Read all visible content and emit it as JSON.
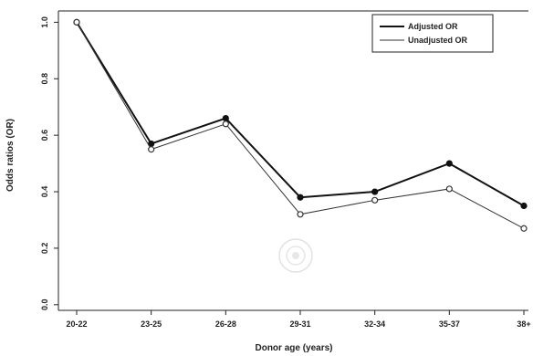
{
  "chart_data": {
    "type": "line",
    "title": "",
    "xlabel": "Donor age (years)",
    "ylabel": "Odds ratios (OR)",
    "categories": [
      "20-22",
      "23-25",
      "26-28",
      "29-31",
      "32-34",
      "35-37",
      "38+"
    ],
    "yticks": [
      "0.0",
      "0.2",
      "0.4",
      "0.6",
      "0.8",
      "1.0"
    ],
    "ylim": [
      -0.02,
      1.04
    ],
    "grid": false,
    "legend_position": "top-right",
    "series": [
      {
        "name": "Adjusted OR",
        "marker": "filled-circle",
        "line": "thick",
        "color": "#111111",
        "values": [
          1.0,
          0.57,
          0.66,
          0.38,
          0.4,
          0.5,
          0.35
        ]
      },
      {
        "name": "Unadjusted OR",
        "marker": "open-circle",
        "line": "thin",
        "color": "#333333",
        "values": [
          1.0,
          0.55,
          0.64,
          0.32,
          0.37,
          0.41,
          0.27
        ]
      }
    ]
  }
}
